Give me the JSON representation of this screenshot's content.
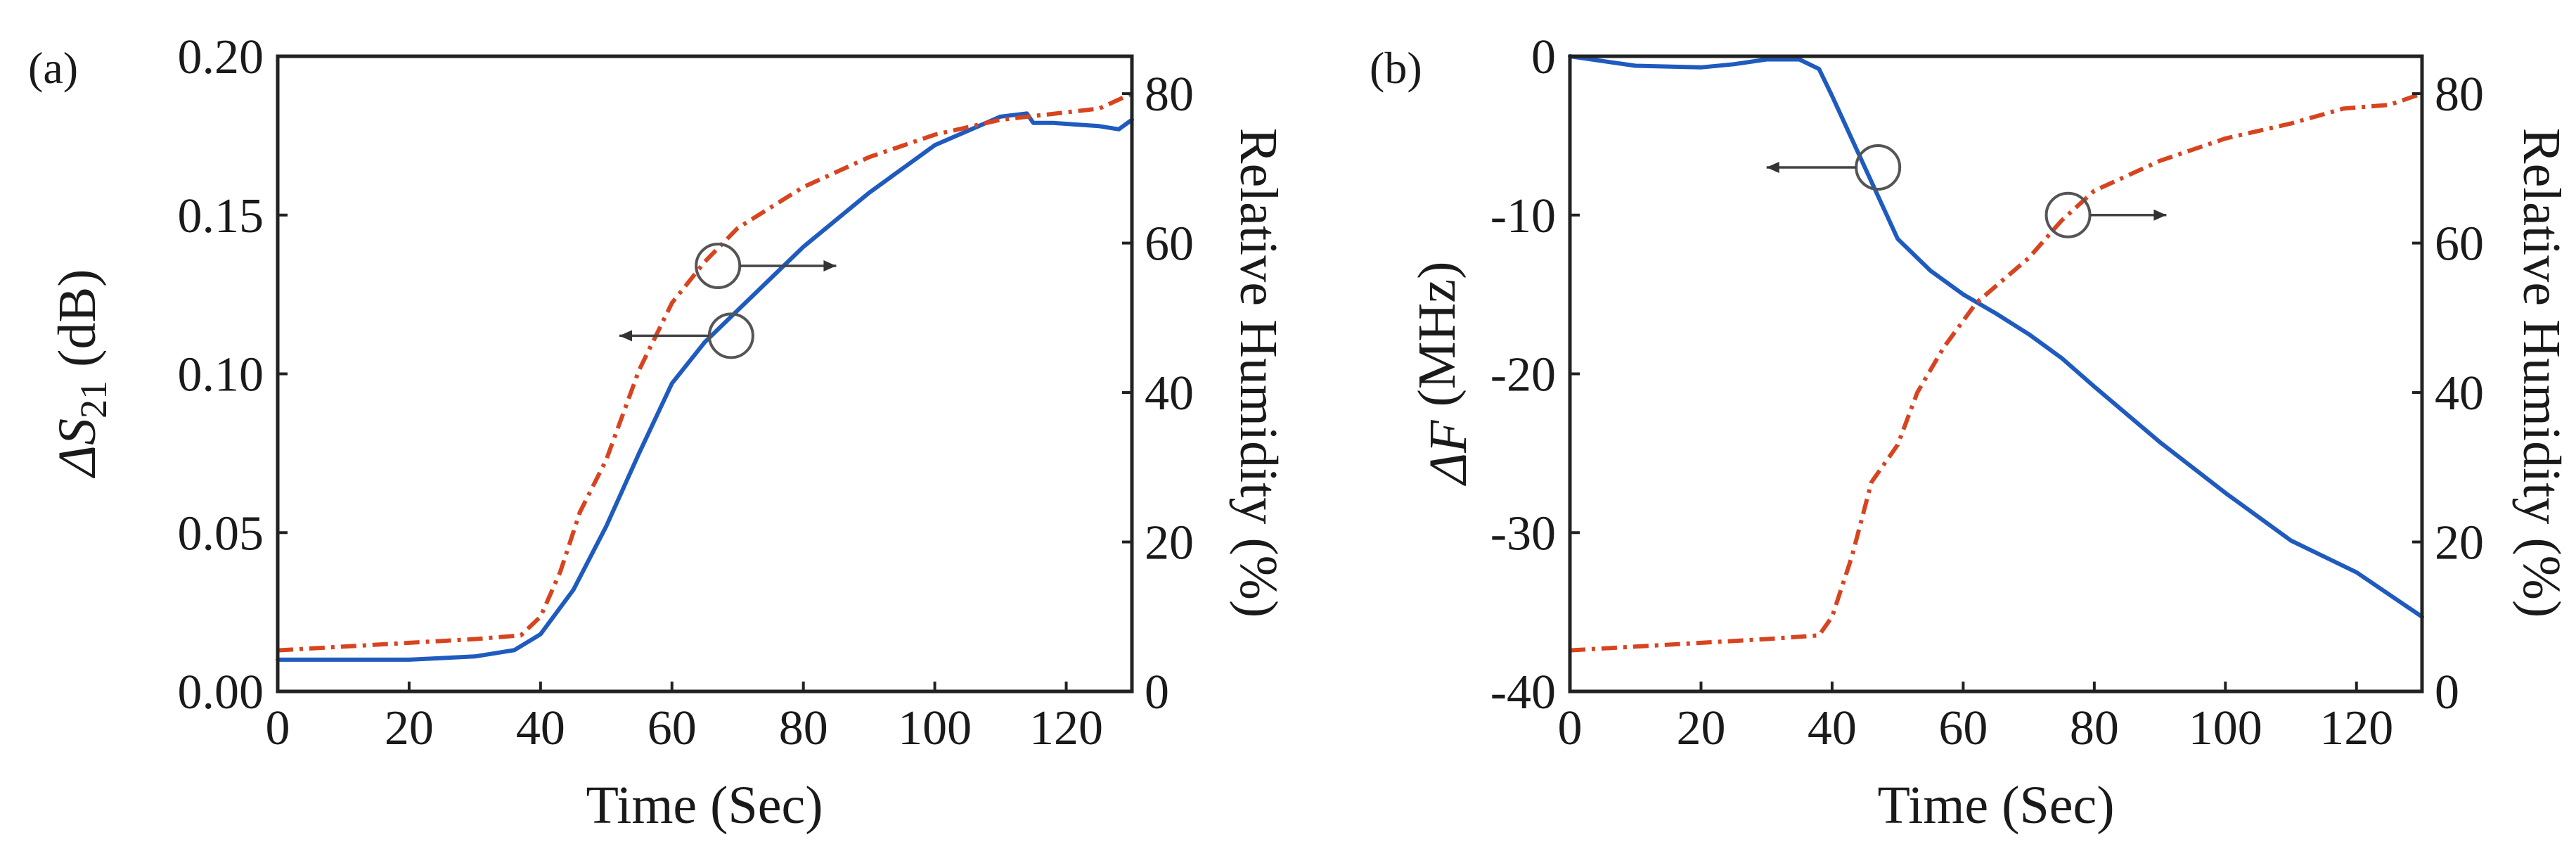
{
  "colors": {
    "blue": "#1f5bbf",
    "red": "#d7441f",
    "axis": "#222222"
  },
  "chart_data": [
    {
      "panel_label": "(a)",
      "type": "line",
      "title": "",
      "xlabel": "Time (Sec)",
      "ylabel_left": {
        "prefix": "ΔS",
        "subscript": "21",
        "suffix": " (dB)"
      },
      "ylabel_right": "Relative Humidity (%)",
      "xlim": [
        0,
        130
      ],
      "ylim_left": [
        0,
        0.2
      ],
      "ylim_right": [
        0,
        85
      ],
      "xticks": [
        0,
        20,
        40,
        60,
        80,
        100,
        120
      ],
      "xtick_labels": [
        "0",
        "20",
        "40",
        "60",
        "80",
        "100",
        "120"
      ],
      "yticks_left": [
        0,
        0.05,
        0.1,
        0.15,
        0.2
      ],
      "ytick_labels_left": [
        "0.00",
        "0.05",
        "0.10",
        "0.15",
        "0.20"
      ],
      "yticks_right": [
        0,
        20,
        40,
        60,
        80
      ],
      "ytick_labels_right": [
        "0",
        "20",
        "40",
        "60",
        "80"
      ],
      "grid": false,
      "series": [
        {
          "name": "ΔS21",
          "axis": "left",
          "style": "solid",
          "color": "blue",
          "x": [
            0,
            10,
            20,
            30,
            36,
            40,
            45,
            50,
            55,
            60,
            65,
            70,
            80,
            90,
            100,
            110,
            114,
            115,
            118,
            125,
            128,
            130
          ],
          "y": [
            0.01,
            0.01,
            0.01,
            0.011,
            0.013,
            0.018,
            0.032,
            0.052,
            0.075,
            0.097,
            0.11,
            0.12,
            0.14,
            0.157,
            0.172,
            0.181,
            0.182,
            0.179,
            0.179,
            0.178,
            0.177,
            0.18
          ]
        },
        {
          "name": "Relative Humidity",
          "axis": "right",
          "style": "dashdot",
          "color": "red",
          "x": [
            0,
            10,
            20,
            30,
            37,
            40,
            43,
            46,
            50,
            55,
            60,
            65,
            70,
            80,
            90,
            100,
            110,
            120,
            125,
            130
          ],
          "y": [
            5.5,
            6.0,
            6.5,
            7.0,
            7.5,
            10.0,
            16.0,
            24.0,
            31.0,
            43.0,
            52.0,
            57.5,
            62.0,
            67.5,
            71.5,
            74.5,
            76.5,
            77.5,
            78.0,
            80.0
          ]
        }
      ],
      "annotations": [
        {
          "shape": "circle",
          "x": 67,
          "y": 0.134,
          "axis": "left",
          "arrow": "right",
          "arrow_to_x": 85
        },
        {
          "shape": "circle",
          "x": 69,
          "y": 0.112,
          "axis": "left",
          "arrow": "left",
          "arrow_to_x": 52
        }
      ]
    },
    {
      "panel_label": "(b)",
      "type": "line",
      "title": "",
      "xlabel": "Time (Sec)",
      "ylabel_left": {
        "prefix": "ΔF",
        "subscript": "",
        "suffix": " (MHz)"
      },
      "ylabel_right": "Relative Humidity (%)",
      "xlim": [
        0,
        130
      ],
      "ylim_left": [
        -40,
        0
      ],
      "ylim_right": [
        0,
        85
      ],
      "xticks": [
        0,
        20,
        40,
        60,
        80,
        100,
        120
      ],
      "xtick_labels": [
        "0",
        "20",
        "40",
        "60",
        "80",
        "100",
        "120"
      ],
      "yticks_left": [
        -40,
        -30,
        -20,
        -10,
        0
      ],
      "ytick_labels_left": [
        "-40",
        "-30",
        "-20",
        "-10",
        "0"
      ],
      "yticks_right": [
        0,
        20,
        40,
        60,
        80
      ],
      "ytick_labels_right": [
        "0",
        "20",
        "40",
        "60",
        "80"
      ],
      "grid": false,
      "series": [
        {
          "name": "ΔF",
          "axis": "left",
          "style": "solid",
          "color": "blue",
          "x": [
            0,
            5,
            10,
            20,
            25,
            30,
            35,
            38,
            40,
            45,
            50,
            55,
            60,
            65,
            70,
            75,
            80,
            90,
            100,
            110,
            120,
            130
          ],
          "y": [
            0,
            -0.3,
            -0.6,
            -0.7,
            -0.5,
            -0.2,
            -0.2,
            -0.8,
            -2.5,
            -7.0,
            -11.5,
            -13.5,
            -15.0,
            -16.2,
            -17.5,
            -19.0,
            -20.8,
            -24.3,
            -27.5,
            -30.5,
            -32.5,
            -35.3
          ]
        },
        {
          "name": "Relative Humidity",
          "axis": "right",
          "style": "dashdot",
          "color": "red",
          "x": [
            0,
            10,
            20,
            30,
            38,
            40,
            43,
            46,
            50,
            53,
            57,
            62,
            70,
            75,
            80,
            90,
            100,
            110,
            118,
            125,
            130
          ],
          "y": [
            5.5,
            6.0,
            6.5,
            7.0,
            7.5,
            10.0,
            18.0,
            28.0,
            33.0,
            40.0,
            46.0,
            52.0,
            58.0,
            63.0,
            67.0,
            71.0,
            74.0,
            76.0,
            78.0,
            78.5,
            80.0
          ]
        }
      ],
      "annotations": [
        {
          "shape": "circle",
          "x": 47,
          "y": -7.0,
          "axis": "left",
          "arrow": "left",
          "arrow_to_x": 30
        },
        {
          "shape": "circle",
          "x": 76,
          "y": -10.0,
          "axis": "left",
          "arrow": "right",
          "arrow_to_x": 91
        }
      ]
    }
  ]
}
